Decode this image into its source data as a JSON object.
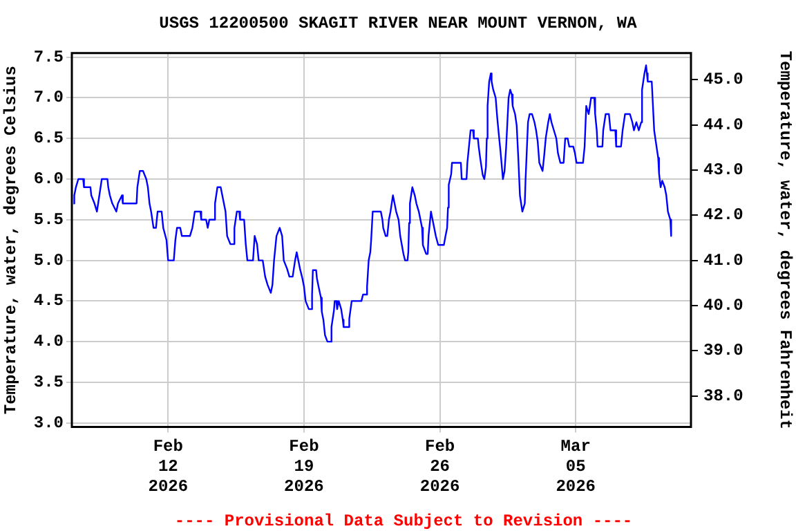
{
  "chart_data": {
    "type": "line",
    "title": "USGS 12200500 SKAGIT RIVER NEAR MOUNT VERNON, WA",
    "ylabel": "Temperature, water, degrees Celsius",
    "y2label": "Temperature, water, degrees Fahrenheit",
    "annotations": [
      "---- Provisional Data Subject to Revision ----"
    ],
    "xlim": [
      "2026-02-07T01:00",
      "2026-03-10T22:30"
    ],
    "xticks": [
      {
        "value": "2026-02-12",
        "label": "Feb 12 2026"
      },
      {
        "value": "2026-02-19",
        "label": "Feb 19 2026"
      },
      {
        "value": "2026-02-26",
        "label": "Feb 26 2026"
      },
      {
        "value": "2026-03-05",
        "label": "Mar 05 2026"
      }
    ],
    "ylim": [
      2.95,
      7.55
    ],
    "yticks": [
      {
        "value": 3,
        "label": "3.0"
      },
      3.5,
      {
        "value": 4,
        "label": "4.0"
      },
      4.5,
      {
        "value": 5,
        "label": "5.0"
      },
      5.5,
      {
        "value": 6,
        "label": "6.0"
      },
      6.5,
      {
        "value": 7,
        "label": "7.0"
      },
      7.5
    ],
    "y2lim": [
      37.31,
      45.59
    ],
    "y2ticks": [
      {
        "value": 38,
        "label": "38.0"
      },
      {
        "value": 39,
        "label": "39.0"
      },
      {
        "value": 40,
        "label": "40.0"
      },
      {
        "value": 41,
        "label": "41.0"
      },
      {
        "value": 42,
        "label": "42.0"
      },
      {
        "value": 43,
        "label": "43.0"
      },
      {
        "value": 44,
        "label": "44.0"
      },
      {
        "value": 45,
        "label": "45.0"
      }
    ],
    "grid": true,
    "legend": false,
    "marker": "none",
    "line_style": "solid",
    "series": [
      {
        "color": "#0000ff",
        "x": [
          "2026-02-07T03:00",
          "2026-02-07T04:00",
          "2026-02-07T06:00",
          "2026-02-07T09:00",
          "2026-02-07T15:00",
          "2026-02-07T16:00",
          "2026-02-08T00:00",
          "2026-02-08T01:00",
          "2026-02-08T05:00",
          "2026-02-08T08:00",
          "2026-02-08T11:00",
          "2026-02-08T14:00",
          "2026-02-08T21:00",
          "2026-02-08T22:00",
          "2026-02-09T00:00",
          "2026-02-09T03:00",
          "2026-02-09T08:00",
          "2026-02-09T10:00",
          "2026-02-09T15:00",
          "2026-02-09T16:00",
          "2026-02-10T09:00",
          "2026-02-10T10:00",
          "2026-02-10T13:00",
          "2026-02-10T17:00",
          "2026-02-10T21:00",
          "2026-02-10T23:00",
          "2026-02-11T01:00",
          "2026-02-11T03:00",
          "2026-02-11T06:00",
          "2026-02-11T09:00",
          "2026-02-11T11:00",
          "2026-02-11T16:00",
          "2026-02-11T18:00",
          "2026-02-11T22:00",
          "2026-02-12T00:00",
          "2026-02-12T07:00",
          "2026-02-12T09:00",
          "2026-02-12T11:00",
          "2026-02-12T15:00",
          "2026-02-12T17:00",
          "2026-02-13T03:00",
          "2026-02-13T06:00",
          "2026-02-13T09:00",
          "2026-02-13T16:00",
          "2026-02-13T17:00",
          "2026-02-13T23:00",
          "2026-02-14T01:00",
          "2026-02-14T03:00",
          "2026-02-14T09:00",
          "2026-02-14T10:00",
          "2026-02-14T13:00",
          "2026-02-14T17:00",
          "2026-02-14T19:00",
          "2026-02-14T23:00",
          "2026-02-15T01:00",
          "2026-02-15T05:00",
          "2026-02-15T09:00",
          "2026-02-15T10:00",
          "2026-02-15T13:00",
          "2026-02-15T16:00",
          "2026-02-15T17:00",
          "2026-02-15T22:00",
          "2026-02-16T00:00",
          "2026-02-16T02:00",
          "2026-02-16T09:00",
          "2026-02-16T11:00",
          "2026-02-16T14:00",
          "2026-02-16T16:00",
          "2026-02-16T21:00",
          "2026-02-17T00:00",
          "2026-02-17T03:00",
          "2026-02-17T07:00",
          "2026-02-17T09:00",
          "2026-02-17T11:00",
          "2026-02-17T14:00",
          "2026-02-17T18:00",
          "2026-02-17T21:00",
          "2026-02-17T23:00",
          "2026-02-18T03:00",
          "2026-02-18T06:00",
          "2026-02-18T10:00",
          "2026-02-18T13:00",
          "2026-02-18T15:00",
          "2026-02-18T17:00",
          "2026-02-18T19:00",
          "2026-02-18T22:00",
          "2026-02-19T00:00",
          "2026-02-19T02:00",
          "2026-02-19T06:00",
          "2026-02-19T09:00",
          "2026-02-19T10:00",
          "2026-02-19T11:00",
          "2026-02-19T15:00",
          "2026-02-19T16:00",
          "2026-02-19T18:00",
          "2026-02-19T21:00",
          "2026-02-19T22:00",
          "2026-02-20T00:00",
          "2026-02-20T02:00",
          "2026-02-20T05:00",
          "2026-02-20T09:00",
          "2026-02-20T10:00",
          "2026-02-20T13:00",
          "2026-02-20T14:00",
          "2026-02-20T16:00",
          "2026-02-20T17:00",
          "2026-02-20T19:00",
          "2026-02-20T22:00",
          "2026-02-21T00:00",
          "2026-02-21T01:00",
          "2026-02-21T07:00",
          "2026-02-21T08:00",
          "2026-02-21T11:00",
          "2026-02-21T23:00",
          "2026-02-22T01:00",
          "2026-02-22T05:00",
          "2026-02-22T06:00",
          "2026-02-22T08:00",
          "2026-02-22T10:00",
          "2026-02-22T11:00",
          "2026-02-22T13:00",
          "2026-02-22T23:00",
          "2026-02-23T01:00",
          "2026-02-23T02:00",
          "2026-02-23T05:00",
          "2026-02-23T07:00",
          "2026-02-23T09:00",
          "2026-02-23T11:00",
          "2026-02-23T14:00",
          "2026-02-23T16:00",
          "2026-02-23T18:00",
          "2026-02-23T21:00",
          "2026-02-23T23:00",
          "2026-02-24T01:00",
          "2026-02-24T03:00",
          "2026-02-24T05:00",
          "2026-02-24T08:00",
          "2026-02-24T09:00",
          "2026-02-24T10:00",
          "2026-02-24T11:00",
          "2026-02-24T14:00",
          "2026-02-24T17:00",
          "2026-02-24T19:00",
          "2026-02-24T22:00",
          "2026-02-25T00:00",
          "2026-02-25T02:00",
          "2026-02-25T03:00",
          "2026-02-25T07:00",
          "2026-02-25T09:00",
          "2026-02-25T10:00",
          "2026-02-25T13:00",
          "2026-02-25T15:00",
          "2026-02-25T17:00",
          "2026-02-25T19:00",
          "2026-02-25T22:00",
          "2026-02-26T05:00",
          "2026-02-26T07:00",
          "2026-02-26T09:00",
          "2026-02-26T10:00",
          "2026-02-26T11:00",
          "2026-02-26T14:00",
          "2026-02-26T15:00",
          "2026-02-27T02:00",
          "2026-02-27T03:00",
          "2026-02-27T09:00",
          "2026-02-27T10:00",
          "2026-02-27T13:00",
          "2026-02-27T14:00",
          "2026-02-27T17:00",
          "2026-02-27T18:00",
          "2026-02-27T23:00",
          "2026-02-28T00:00",
          "2026-02-28T02:00",
          "2026-02-28T05:00",
          "2026-02-28T07:00",
          "2026-02-28T09:00",
          "2026-02-28T10:00",
          "2026-02-28T11:00",
          "2026-02-28T13:00",
          "2026-02-28T15:00",
          "2026-02-28T16:00",
          "2026-02-28T18:00",
          "2026-02-28T21:00",
          "2026-02-28T23:00",
          "2026-03-01T01:00",
          "2026-03-01T03:00",
          "2026-03-01T06:00",
          "2026-03-01T08:00",
          "2026-03-01T10:00",
          "2026-03-01T13:00",
          "2026-03-01T15:00",
          "2026-03-01T17:00",
          "2026-03-01T18:00",
          "2026-03-01T21:00",
          "2026-03-01T23:00",
          "2026-03-02T01:00",
          "2026-03-02T03:00",
          "2026-03-02T06:00",
          "2026-03-02T09:00",
          "2026-03-02T10:00",
          "2026-03-02T13:00",
          "2026-03-02T15:00",
          "2026-03-02T18:00",
          "2026-03-02T21:00",
          "2026-03-02T23:00",
          "2026-03-03T01:00",
          "2026-03-03T03:00",
          "2026-03-03T07:00",
          "2026-03-03T09:00",
          "2026-03-03T11:00",
          "2026-03-03T14:00",
          "2026-03-03T16:00",
          "2026-03-03T18:00",
          "2026-03-03T21:00",
          "2026-03-04T00:00",
          "2026-03-04T02:00",
          "2026-03-04T05:00",
          "2026-03-04T09:00",
          "2026-03-04T11:00",
          "2026-03-04T14:00",
          "2026-03-04T16:00",
          "2026-03-04T21:00",
          "2026-03-04T23:00",
          "2026-03-05T01:00",
          "2026-03-05T09:00",
          "2026-03-05T11:00",
          "2026-03-05T13:00",
          "2026-03-05T16:00",
          "2026-03-05T19:00",
          "2026-03-05T23:00",
          "2026-03-06T00:00",
          "2026-03-06T02:00",
          "2026-03-06T03:00",
          "2026-03-06T09:00",
          "2026-03-06T10:00",
          "2026-03-06T13:00",
          "2026-03-06T17:00",
          "2026-03-06T19:00",
          "2026-03-07T01:00",
          "2026-03-07T02:00",
          "2026-03-07T08:00",
          "2026-03-07T10:00",
          "2026-03-07T13:00",
          "2026-03-07T19:00",
          "2026-03-07T22:00",
          "2026-03-08T00:00",
          "2026-03-08T03:00",
          "2026-03-08T06:00",
          "2026-03-08T09:00",
          "2026-03-08T10:00",
          "2026-03-08T13:00",
          "2026-03-08T15:00",
          "2026-03-08T16:00",
          "2026-03-08T17:00",
          "2026-03-08T22:00",
          "2026-03-08T23:00",
          "2026-03-09T01:00",
          "2026-03-09T03:00",
          "2026-03-09T06:00",
          "2026-03-09T07:00",
          "2026-03-09T09:00",
          "2026-03-09T11:00",
          "2026-03-09T14:00",
          "2026-03-09T16:00",
          "2026-03-09T18:00",
          "2026-03-09T21:00",
          "2026-03-09T22:00"
        ],
        "values": [
          5.7,
          5.8,
          5.9,
          6.0,
          6.0,
          5.9,
          5.9,
          5.8,
          5.7,
          5.6,
          5.8,
          6.0,
          6.0,
          5.9,
          5.8,
          5.7,
          5.6,
          5.7,
          5.8,
          5.7,
          5.7,
          5.9,
          6.1,
          6.1,
          6.0,
          5.9,
          5.7,
          5.6,
          5.4,
          5.4,
          5.6,
          5.6,
          5.4,
          5.25,
          5.0,
          5.0,
          5.25,
          5.4,
          5.4,
          5.3,
          5.3,
          5.4,
          5.6,
          5.6,
          5.5,
          5.5,
          5.4,
          5.5,
          5.5,
          5.7,
          5.9,
          5.9,
          5.8,
          5.6,
          5.3,
          5.2,
          5.2,
          5.4,
          5.6,
          5.6,
          5.5,
          5.5,
          5.2,
          5.0,
          5.0,
          5.3,
          5.2,
          5.0,
          5.0,
          4.8,
          4.7,
          4.6,
          4.7,
          5.0,
          5.3,
          5.4,
          5.3,
          5.0,
          4.9,
          4.8,
          4.8,
          5.0,
          5.1,
          5.0,
          4.9,
          4.78,
          4.68,
          4.5,
          4.4,
          4.4,
          4.58,
          4.88,
          4.88,
          4.78,
          4.68,
          4.54,
          4.37,
          4.27,
          4.08,
          4.0,
          4.0,
          4.18,
          4.38,
          4.5,
          4.5,
          4.4,
          4.5,
          4.4,
          4.27,
          4.18,
          4.18,
          4.28,
          4.5,
          4.5,
          4.58,
          4.58,
          4.68,
          5.0,
          5.1,
          5.24,
          5.6,
          5.6,
          5.5,
          5.4,
          5.3,
          5.3,
          5.5,
          5.6,
          5.8,
          5.7,
          5.6,
          5.5,
          5.3,
          5.19,
          5.08,
          5.0,
          5.0,
          5.1,
          5.46,
          5.7,
          5.9,
          5.8,
          5.7,
          5.6,
          5.5,
          5.4,
          5.19,
          5.08,
          5.08,
          5.3,
          5.6,
          5.5,
          5.4,
          5.3,
          5.19,
          5.19,
          5.3,
          5.4,
          5.65,
          5.93,
          6.06,
          6.2,
          6.2,
          6.0,
          6.0,
          6.2,
          6.5,
          6.6,
          6.6,
          6.5,
          6.5,
          6.4,
          6.25,
          6.05,
          6.0,
          6.15,
          6.5,
          6.9,
          7.2,
          7.3,
          7.2,
          7.1,
          7.0,
          6.75,
          6.54,
          6.34,
          6.0,
          6.1,
          6.4,
          7.0,
          7.1,
          7.04,
          6.9,
          6.8,
          6.66,
          6.26,
          5.8,
          5.6,
          5.7,
          6.0,
          6.7,
          6.8,
          6.8,
          6.7,
          6.6,
          6.46,
          6.2,
          6.1,
          6.29,
          6.51,
          6.7,
          6.8,
          6.7,
          6.6,
          6.5,
          6.32,
          6.2,
          6.2,
          6.5,
          6.5,
          6.4,
          6.4,
          6.32,
          6.2,
          6.2,
          6.4,
          6.9,
          6.8,
          7.0,
          7.0,
          6.8,
          6.6,
          6.4,
          6.4,
          6.6,
          6.8,
          6.8,
          6.6,
          6.6,
          6.4,
          6.4,
          6.6,
          6.8,
          6.8,
          6.7,
          6.6,
          6.7,
          6.6,
          6.7,
          7.1,
          7.3,
          7.4,
          7.3,
          7.2,
          7.2,
          7.0,
          6.6,
          6.46,
          6.26,
          6.07,
          5.9,
          5.98,
          5.9,
          5.8,
          5.6,
          5.5,
          5.3
        ]
      }
    ]
  }
}
